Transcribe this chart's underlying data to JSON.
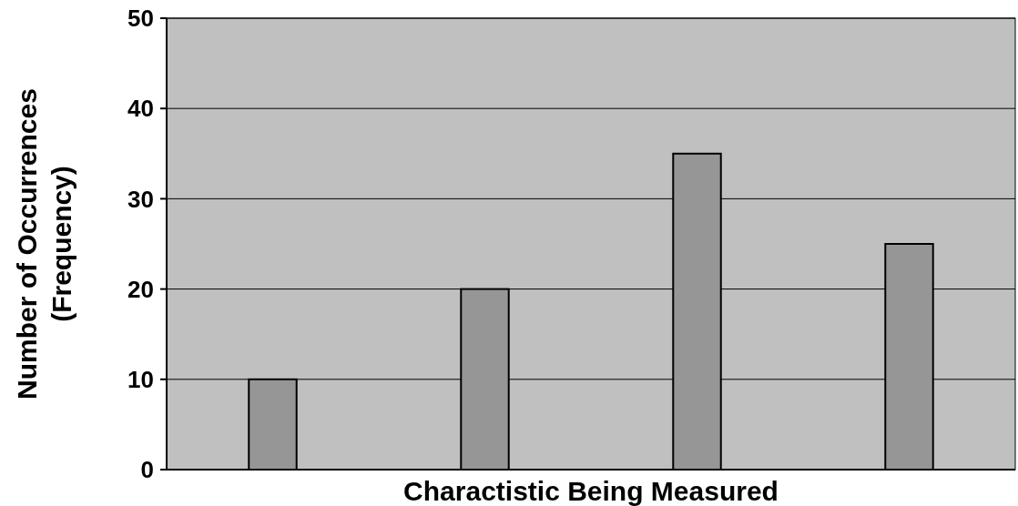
{
  "chart_data": {
    "type": "bar",
    "xlabel": "Charactistic Being Measured",
    "ylabel": "Number of Occurrences\n(Frequency)",
    "categories": [
      null,
      null,
      null,
      null
    ],
    "values": [
      10,
      20,
      35,
      25
    ],
    "color": "#969696",
    "ylim": [
      0,
      50
    ],
    "yticks": [
      0,
      10,
      20,
      30,
      40,
      50
    ],
    "grid": "y"
  }
}
